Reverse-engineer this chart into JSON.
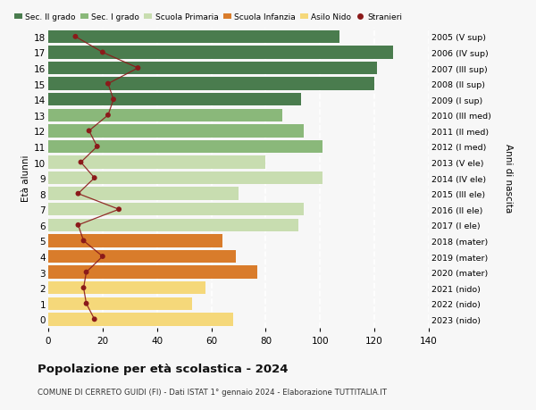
{
  "ages": [
    18,
    17,
    16,
    15,
    14,
    13,
    12,
    11,
    10,
    9,
    8,
    7,
    6,
    5,
    4,
    3,
    2,
    1,
    0
  ],
  "bar_values": [
    107,
    127,
    121,
    120,
    93,
    86,
    94,
    101,
    80,
    101,
    70,
    94,
    92,
    64,
    69,
    77,
    58,
    53,
    68
  ],
  "bar_colors": [
    "#4a7c4e",
    "#4a7c4e",
    "#4a7c4e",
    "#4a7c4e",
    "#4a7c4e",
    "#8ab87a",
    "#8ab87a",
    "#8ab87a",
    "#c8ddb0",
    "#c8ddb0",
    "#c8ddb0",
    "#c8ddb0",
    "#c8ddb0",
    "#d97c2b",
    "#d97c2b",
    "#d97c2b",
    "#f5d87a",
    "#f5d87a",
    "#f5d87a"
  ],
  "stranieri_values": [
    10,
    20,
    33,
    22,
    24,
    22,
    15,
    18,
    12,
    17,
    11,
    26,
    11,
    13,
    20,
    14,
    13,
    14,
    17
  ],
  "right_labels": [
    "2005 (V sup)",
    "2006 (IV sup)",
    "2007 (III sup)",
    "2008 (II sup)",
    "2009 (I sup)",
    "2010 (III med)",
    "2011 (II med)",
    "2012 (I med)",
    "2013 (V ele)",
    "2014 (IV ele)",
    "2015 (III ele)",
    "2016 (II ele)",
    "2017 (I ele)",
    "2018 (mater)",
    "2019 (mater)",
    "2020 (mater)",
    "2021 (nido)",
    "2022 (nido)",
    "2023 (nido)"
  ],
  "legend_labels": [
    "Sec. II grado",
    "Sec. I grado",
    "Scuola Primaria",
    "Scuola Infanzia",
    "Asilo Nido",
    "Stranieri"
  ],
  "legend_colors": [
    "#4a7c4e",
    "#8ab87a",
    "#c8ddb0",
    "#d97c2b",
    "#f5d87a",
    "#8b1a1a"
  ],
  "ylabel_left": "Età alunni",
  "ylabel_right": "Anni di nascita",
  "title": "Popolazione per età scolastica - 2024",
  "subtitle": "COMUNE DI CERRETO GUIDI (FI) - Dati ISTAT 1° gennaio 2024 - Elaborazione TUTTITALIA.IT",
  "xlim": [
    0,
    140
  ],
  "xticks": [
    0,
    20,
    40,
    60,
    80,
    100,
    120,
    140
  ],
  "bg_color": "#f7f7f7",
  "bar_height": 0.82,
  "stranieri_line_color": "#8b1a1a",
  "stranieri_dot_color": "#8b1a1a"
}
